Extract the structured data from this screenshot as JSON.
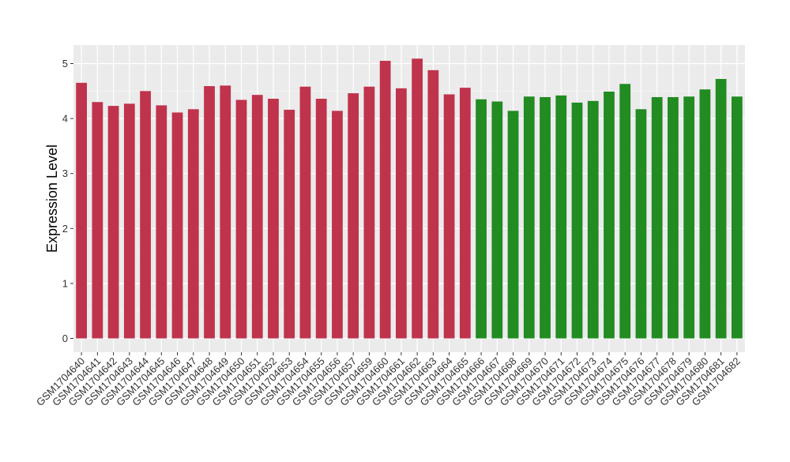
{
  "chart_data": {
    "type": "bar",
    "title": "",
    "xlabel": "",
    "ylabel": "Expression Level",
    "ylim": [
      0,
      5.35
    ],
    "yticks": [
      0,
      1,
      2,
      3,
      4,
      5
    ],
    "grid": true,
    "background": "#ebebeb",
    "group_colors": {
      "red": "#c0334d",
      "green": "#228b22"
    },
    "categories": [
      "GSM1704640",
      "GSM1704641",
      "GSM1704642",
      "GSM1704643",
      "GSM1704644",
      "GSM1704645",
      "GSM1704646",
      "GSM1704647",
      "GSM1704648",
      "GSM1704649",
      "GSM1704650",
      "GSM1704651",
      "GSM1704652",
      "GSM1704653",
      "GSM1704654",
      "GSM1704655",
      "GSM1704656",
      "GSM1704657",
      "GSM1704659",
      "GSM1704660",
      "GSM1704661",
      "GSM1704662",
      "GSM1704663",
      "GSM1704664",
      "GSM1704665",
      "GSM1704666",
      "GSM1704667",
      "GSM1704668",
      "GSM1704669",
      "GSM1704670",
      "GSM1704671",
      "GSM1704672",
      "GSM1704673",
      "GSM1704674",
      "GSM1704675",
      "GSM1704676",
      "GSM1704677",
      "GSM1704678",
      "GSM1704679",
      "GSM1704680",
      "GSM1704681",
      "GSM1704682"
    ],
    "values": [
      4.65,
      4.3,
      4.23,
      4.27,
      4.5,
      4.24,
      4.11,
      4.17,
      4.59,
      4.6,
      4.34,
      4.43,
      4.36,
      4.16,
      4.58,
      4.36,
      4.14,
      4.46,
      4.58,
      5.05,
      4.55,
      5.09,
      4.88,
      4.44,
      4.56,
      4.35,
      4.31,
      4.14,
      4.4,
      4.39,
      4.42,
      4.29,
      4.32,
      4.49,
      4.63,
      4.17,
      4.39,
      4.39,
      4.4,
      4.53,
      4.72,
      4.4
    ],
    "groups": [
      "red",
      "red",
      "red",
      "red",
      "red",
      "red",
      "red",
      "red",
      "red",
      "red",
      "red",
      "red",
      "red",
      "red",
      "red",
      "red",
      "red",
      "red",
      "red",
      "red",
      "red",
      "red",
      "red",
      "red",
      "red",
      "green",
      "green",
      "green",
      "green",
      "green",
      "green",
      "green",
      "green",
      "green",
      "green",
      "green",
      "green",
      "green",
      "green",
      "green",
      "green",
      "green"
    ]
  }
}
